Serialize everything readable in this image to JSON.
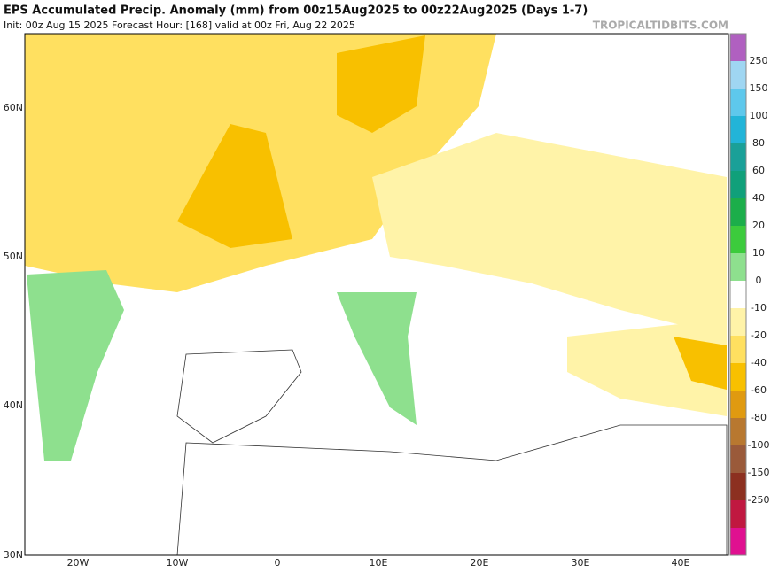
{
  "header": {
    "title": "EPS Accumulated Precip. Anomaly (mm) from 00z15Aug2025 to 00z22Aug2025 (Days 1-7)",
    "subtitle": "Init: 00z Aug 15 2025   Forecast Hour: [168]   valid at 00z Fri, Aug 22 2025",
    "watermark": "TROPICALTIDBITS.COM"
  },
  "map": {
    "lat_labels": [
      "60N",
      "50N",
      "40N",
      "30N"
    ],
    "lon_labels": [
      "20W",
      "10W",
      "0",
      "10E",
      "20E",
      "30E",
      "40E"
    ]
  },
  "colorbar": {
    "labels": [
      250,
      150,
      100,
      80,
      60,
      40,
      20,
      10,
      0,
      -10,
      -20,
      -40,
      -60,
      -80,
      -100,
      -150,
      -250
    ],
    "colors": [
      "#b060c0",
      "#9fd6f2",
      "#5ec8ec",
      "#22b4d8",
      "#1aa098",
      "#10a07a",
      "#1cae4a",
      "#3ccb3c",
      "#8ee08e",
      "#ffffff",
      "#fff3a8",
      "#ffe060",
      "#f8c000",
      "#e09a10",
      "#b87830",
      "#9a5a3a",
      "#8c3020",
      "#c01840",
      "#e01090"
    ]
  }
}
